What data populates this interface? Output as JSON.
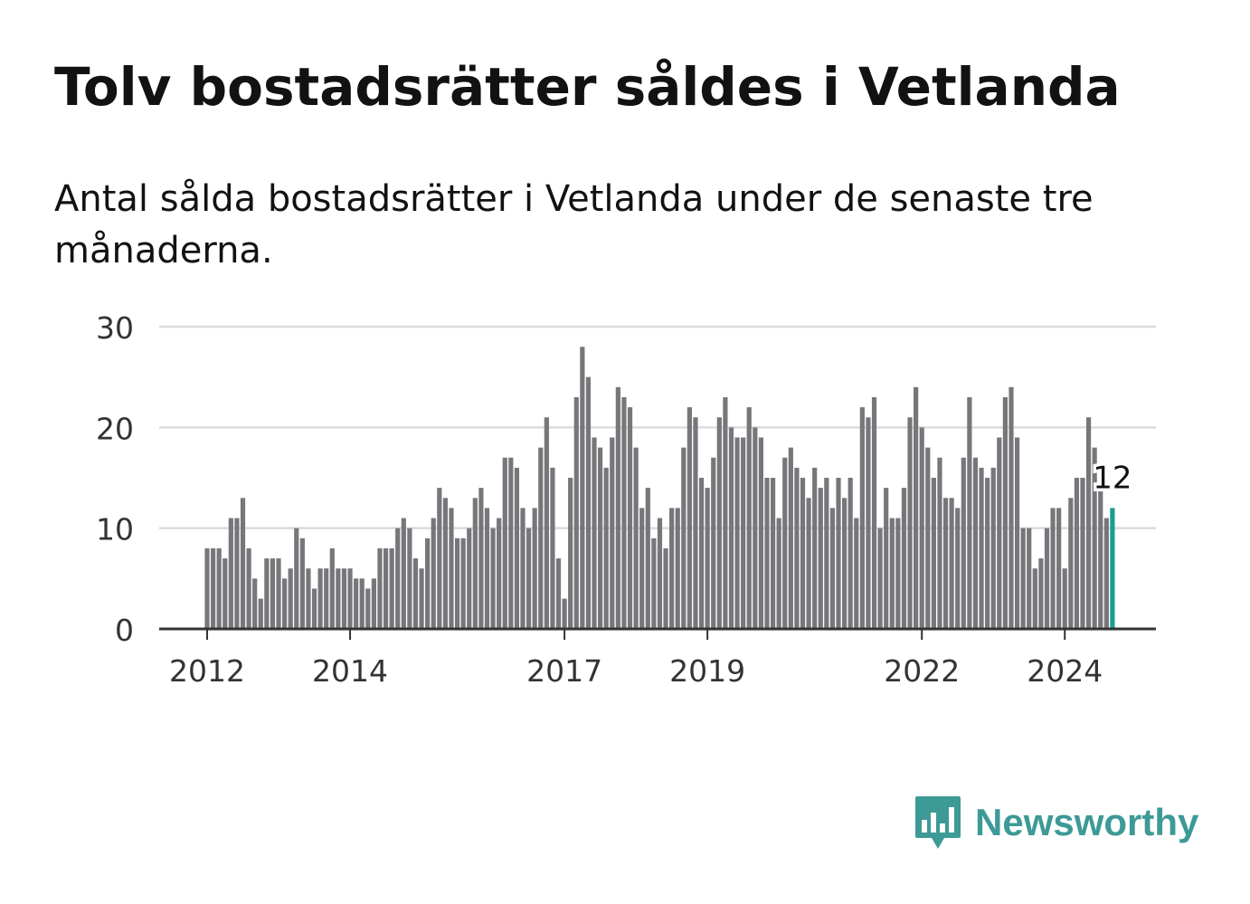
{
  "title": "Tolv bostadsrätter såldes i Vetlanda",
  "subtitle": "Antal sålda bostadsrätter i Vetlanda under de senaste tre månaderna.",
  "logo": {
    "text": "Newsworthy",
    "icon": "bar-chart-speech-bubble-icon",
    "color": "#3d9a96"
  },
  "chart_data": {
    "type": "bar",
    "x_start": "2012-01",
    "interval": "month",
    "values": [
      8,
      8,
      8,
      7,
      11,
      11,
      13,
      8,
      5,
      3,
      7,
      7,
      7,
      5,
      6,
      10,
      9,
      6,
      4,
      6,
      6,
      8,
      6,
      6,
      6,
      5,
      5,
      4,
      5,
      8,
      8,
      8,
      10,
      11,
      10,
      7,
      6,
      9,
      11,
      14,
      13,
      12,
      9,
      9,
      10,
      13,
      14,
      12,
      10,
      11,
      17,
      17,
      16,
      12,
      10,
      12,
      18,
      21,
      16,
      7,
      3,
      15,
      23,
      28,
      25,
      19,
      18,
      16,
      19,
      24,
      23,
      22,
      18,
      12,
      14,
      9,
      11,
      8,
      12,
      12,
      18,
      22,
      21,
      15,
      14,
      17,
      21,
      23,
      20,
      19,
      19,
      22,
      20,
      19,
      15,
      15,
      11,
      17,
      18,
      16,
      15,
      13,
      16,
      14,
      15,
      12,
      15,
      13,
      15,
      11,
      22,
      21,
      23,
      10,
      14,
      11,
      11,
      14,
      21,
      24,
      20,
      18,
      15,
      17,
      13,
      13,
      12,
      17,
      23,
      17,
      16,
      15,
      16,
      19,
      23,
      24,
      19,
      10,
      10,
      6,
      7,
      10,
      12,
      12,
      6,
      13,
      15,
      15,
      21,
      18,
      14,
      11,
      12
    ],
    "ylim": [
      0,
      30
    ],
    "yticks": [
      0,
      10,
      20,
      30
    ],
    "xticks": [
      "2012",
      "2014",
      "2017",
      "2019",
      "2022",
      "2024"
    ],
    "bar_color": "#78767a",
    "highlight_color": "#199e90",
    "highlight_label": "12",
    "grid": true,
    "xlabel": "",
    "ylabel": ""
  }
}
